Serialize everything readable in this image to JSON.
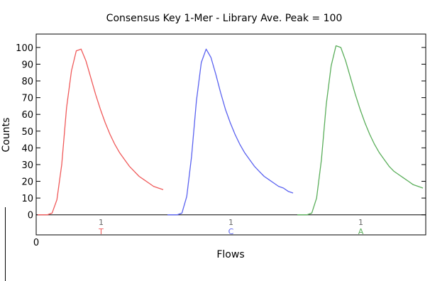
{
  "chart_data": {
    "type": "line",
    "title": "Consensus Key 1-Mer - Library Ave. Peak = 100",
    "xlabel": "Flows",
    "ylabel": "Counts",
    "ylim": [
      -12,
      108
    ],
    "yticks": [
      0,
      10,
      20,
      30,
      40,
      50,
      60,
      70,
      80,
      90,
      100
    ],
    "xtick_labels": [
      "0"
    ],
    "grid": false,
    "series": [
      {
        "name": "T",
        "flow_count": "1",
        "color": "#f05a5a",
        "values": [
          0,
          0,
          0,
          1,
          9,
          30,
          64,
          86,
          98,
          99,
          92,
          82,
          72,
          63,
          55,
          48,
          42,
          37,
          33,
          29,
          26,
          23,
          21,
          19,
          17,
          16,
          15
        ]
      },
      {
        "name": "C",
        "flow_count": "1",
        "color": "#5a62f0",
        "values": [
          0,
          0,
          0,
          1,
          11,
          35,
          68,
          91,
          99,
          94,
          84,
          73,
          63,
          55,
          48,
          42,
          37,
          33,
          29,
          26,
          23,
          21,
          19,
          17,
          16,
          14,
          13
        ]
      },
      {
        "name": "A",
        "flow_count": "1",
        "color": "#5aae5a",
        "values": [
          0,
          0,
          0,
          1,
          10,
          33,
          66,
          89,
          101,
          100,
          92,
          82,
          72,
          63,
          55,
          48,
          42,
          37,
          33,
          29,
          26,
          24,
          22,
          20,
          18,
          17,
          16
        ]
      }
    ]
  }
}
